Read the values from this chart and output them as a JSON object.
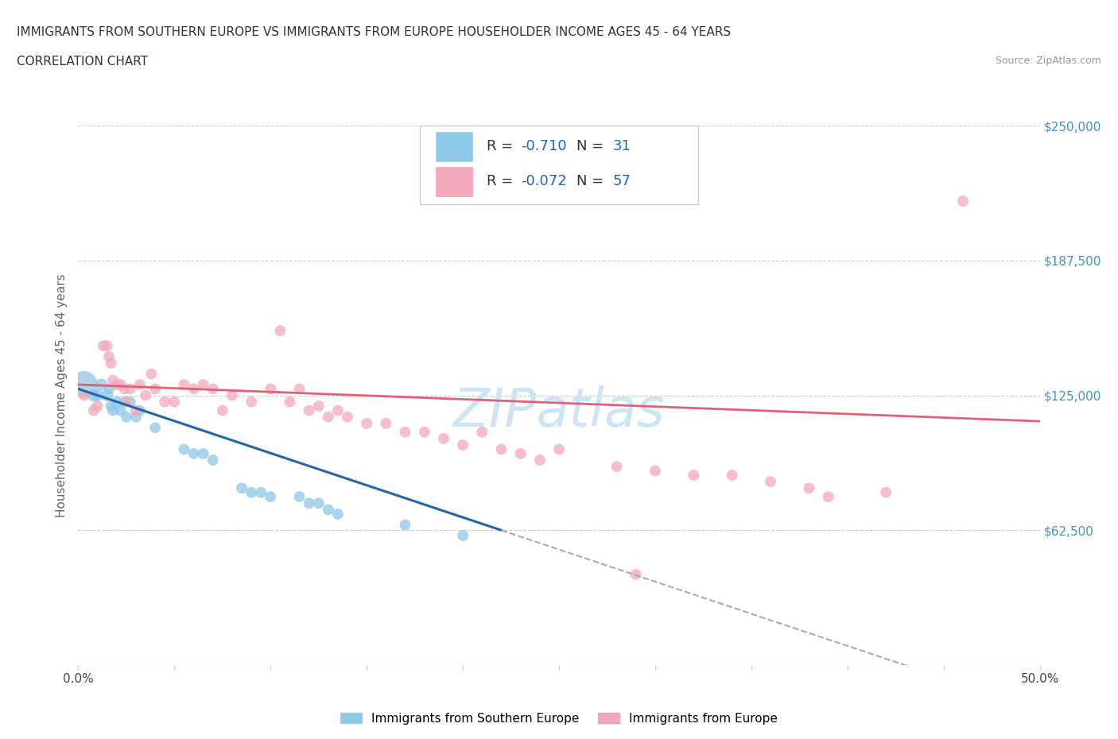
{
  "title_line1": "IMMIGRANTS FROM SOUTHERN EUROPE VS IMMIGRANTS FROM EUROPE HOUSEHOLDER INCOME AGES 45 - 64 YEARS",
  "title_line2": "CORRELATION CHART",
  "source_text": "Source: ZipAtlas.com",
  "ylabel": "Householder Income Ages 45 - 64 years",
  "xlim": [
    0.0,
    0.5
  ],
  "ylim": [
    0,
    250000
  ],
  "yticks": [
    0,
    62500,
    125000,
    187500,
    250000
  ],
  "xticks": [
    0.0,
    0.05,
    0.1,
    0.15,
    0.2,
    0.25,
    0.3,
    0.35,
    0.4,
    0.45,
    0.5
  ],
  "blue_color": "#8ec8e8",
  "pink_color": "#f4a8bc",
  "blue_R": -0.71,
  "blue_N": 31,
  "pink_R": -0.072,
  "pink_N": 57,
  "trend_line_color_blue": "#2166ac",
  "trend_line_color_pink": "#e0607a",
  "trend_line_dashed_color": "#aaaaaa",
  "watermark": "ZIPatlas",
  "watermark_color": "#cde4f5",
  "blue_scatter_x": [
    0.003,
    0.008,
    0.01,
    0.012,
    0.015,
    0.016,
    0.017,
    0.018,
    0.02,
    0.022,
    0.024,
    0.025,
    0.027,
    0.03,
    0.032,
    0.04,
    0.055,
    0.06,
    0.065,
    0.07,
    0.085,
    0.09,
    0.095,
    0.1,
    0.115,
    0.12,
    0.125,
    0.13,
    0.135,
    0.17,
    0.2
  ],
  "blue_scatter_y": [
    130000,
    125000,
    125000,
    130000,
    125000,
    128000,
    120000,
    118000,
    122000,
    118000,
    122000,
    115000,
    122000,
    115000,
    118000,
    110000,
    100000,
    98000,
    98000,
    95000,
    82000,
    80000,
    80000,
    78000,
    78000,
    75000,
    75000,
    72000,
    70000,
    65000,
    60000
  ],
  "blue_scatter_size": [
    600,
    120,
    120,
    120,
    120,
    100,
    100,
    100,
    100,
    100,
    100,
    100,
    100,
    100,
    100,
    100,
    100,
    100,
    100,
    100,
    100,
    100,
    100,
    100,
    100,
    100,
    100,
    100,
    100,
    100,
    100
  ],
  "pink_scatter_x": [
    0.003,
    0.008,
    0.01,
    0.013,
    0.015,
    0.016,
    0.017,
    0.018,
    0.02,
    0.022,
    0.024,
    0.025,
    0.027,
    0.03,
    0.032,
    0.035,
    0.038,
    0.04,
    0.045,
    0.05,
    0.055,
    0.06,
    0.065,
    0.07,
    0.075,
    0.08,
    0.09,
    0.1,
    0.105,
    0.11,
    0.115,
    0.12,
    0.125,
    0.13,
    0.135,
    0.14,
    0.15,
    0.16,
    0.17,
    0.18,
    0.19,
    0.2,
    0.21,
    0.22,
    0.23,
    0.24,
    0.25,
    0.28,
    0.29,
    0.3,
    0.32,
    0.34,
    0.36,
    0.38,
    0.39,
    0.42,
    0.46
  ],
  "pink_scatter_y": [
    125000,
    118000,
    120000,
    148000,
    148000,
    143000,
    140000,
    132000,
    130000,
    130000,
    128000,
    122000,
    128000,
    118000,
    130000,
    125000,
    135000,
    128000,
    122000,
    122000,
    130000,
    128000,
    130000,
    128000,
    118000,
    125000,
    122000,
    128000,
    155000,
    122000,
    128000,
    118000,
    120000,
    115000,
    118000,
    115000,
    112000,
    112000,
    108000,
    108000,
    105000,
    102000,
    108000,
    100000,
    98000,
    95000,
    100000,
    92000,
    42000,
    90000,
    88000,
    88000,
    85000,
    82000,
    78000,
    80000,
    215000
  ],
  "pink_scatter_size": [
    100,
    100,
    100,
    100,
    100,
    100,
    100,
    100,
    100,
    100,
    100,
    100,
    100,
    100,
    100,
    100,
    100,
    100,
    100,
    100,
    100,
    100,
    100,
    100,
    100,
    100,
    100,
    100,
    100,
    100,
    100,
    100,
    100,
    100,
    100,
    100,
    100,
    100,
    100,
    100,
    100,
    100,
    100,
    100,
    100,
    100,
    100,
    100,
    100,
    100,
    100,
    100,
    100,
    100,
    100,
    100,
    100
  ],
  "blue_trend_x0": 0.0,
  "blue_trend_y0": 128000,
  "blue_trend_x1": 0.22,
  "blue_trend_y1": 62500,
  "pink_trend_x0": 0.0,
  "pink_trend_y0": 130000,
  "pink_trend_x1": 0.5,
  "pink_trend_y1": 113000
}
